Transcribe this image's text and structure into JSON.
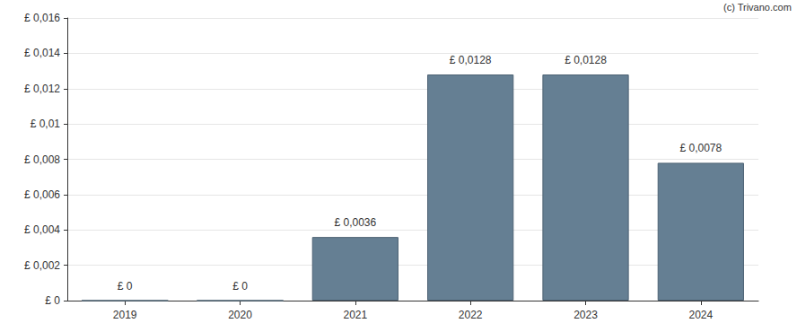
{
  "chart_data": {
    "type": "bar",
    "annotations": [
      "(c) Trivano.com"
    ],
    "categories": [
      "2019",
      "2020",
      "2021",
      "2022",
      "2023",
      "2024"
    ],
    "values": [
      0,
      0,
      0.0036,
      0.0128,
      0.0128,
      0.0078
    ],
    "value_labels": [
      "£ 0",
      "£ 0",
      "£ 0,0036",
      "£ 0,0128",
      "£ 0,0128",
      "£ 0,0078"
    ],
    "data_labels": true,
    "color": "#657f93",
    "ylim": [
      0,
      0.016
    ],
    "yticks": [
      {
        "value": 0,
        "label": "£ 0"
      },
      {
        "value": 0.002,
        "label": "£ 0,002"
      },
      {
        "value": 0.004,
        "label": "£ 0,004"
      },
      {
        "value": 0.006,
        "label": "£ 0,006"
      },
      {
        "value": 0.008,
        "label": "£ 0,008"
      },
      {
        "value": 0.01,
        "label": "£ 0,01"
      },
      {
        "value": 0.012,
        "label": "£ 0,012"
      },
      {
        "value": 0.014,
        "label": "£ 0,014"
      },
      {
        "value": 0.016,
        "label": "£ 0,016"
      }
    ],
    "grid": true
  }
}
